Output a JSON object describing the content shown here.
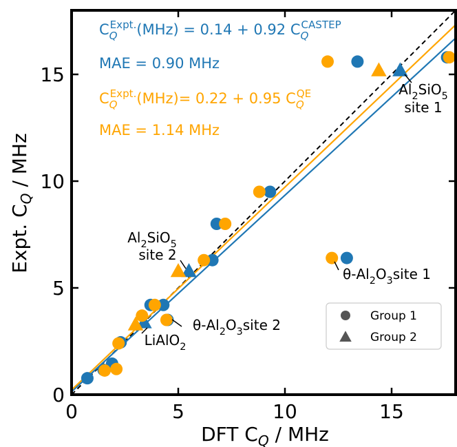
{
  "chart_data": {
    "type": "scatter",
    "x_label": [
      "DFT C",
      "Q",
      " / MHz"
    ],
    "y_label": [
      "Expt. C",
      "Q",
      " / MHz"
    ],
    "xlim": [
      0,
      18
    ],
    "ylim": [
      0,
      18
    ],
    "xticks": [
      0,
      5,
      10,
      15
    ],
    "yticks": [
      0,
      5,
      10,
      15
    ],
    "parity_line": true,
    "series": [
      {
        "color": "#1f77b4",
        "marker": "circle",
        "x": [
          0.74,
          1.5,
          1.9,
          2.3,
          3.7,
          4.3,
          4.5,
          6.6,
          6.8,
          9.3,
          12.9,
          13.4,
          17.6
        ],
        "y": [
          0.77,
          1.16,
          1.45,
          2.45,
          4.2,
          4.2,
          3.5,
          6.3,
          8.0,
          9.5,
          6.4,
          15.6,
          15.8
        ]
      },
      {
        "color": "#1f77b4",
        "marker": "triangle",
        "x": [
          3.4,
          5.5,
          15.4
        ],
        "y": [
          3.4,
          5.8,
          15.2
        ]
      },
      {
        "color": "#ffa500",
        "marker": "circle",
        "x": [
          1.55,
          2.1,
          2.2,
          3.3,
          3.9,
          4.45,
          6.2,
          7.2,
          8.8,
          12.2,
          12.0,
          17.7
        ],
        "y": [
          1.13,
          1.2,
          2.4,
          3.7,
          4.2,
          3.5,
          6.3,
          8.0,
          9.5,
          6.4,
          15.6,
          15.8
        ]
      },
      {
        "color": "#ffa500",
        "marker": "triangle",
        "x": [
          3.0,
          5.0,
          14.4
        ],
        "y": [
          3.3,
          5.8,
          15.2
        ]
      }
    ],
    "fits": [
      {
        "color": "#1f77b4",
        "prefix": "C",
        "sub": "Q",
        "sup": "Expt.",
        "mid": "(MHz) = ",
        "intercept": 0.14,
        "plus": " + ",
        "slope": 0.92,
        "var": " C",
        "var_sub": "Q",
        "var_sup": "CASTEP",
        "mae": "MAE = 0.90 MHz"
      },
      {
        "color": "#ffa500",
        "prefix": "C",
        "sub": "Q",
        "sup": "Expt.",
        "mid": "(MHz)= ",
        "intercept": 0.22,
        "plus": " + ",
        "slope": 0.95,
        "var": " C",
        "var_sub": "Q",
        "var_sup": "QE",
        "mae": "MAE = 1.14 MHz"
      }
    ],
    "annotations": [
      {
        "lines": [
          [
            "Al",
            "2",
            "SiO",
            "5"
          ],
          [
            "site 1"
          ]
        ]
      },
      {
        "lines": [
          [
            "Al",
            "2",
            "SiO",
            "5"
          ],
          [
            "site 2"
          ]
        ]
      },
      {
        "lines": [
          [
            "θ-Al",
            "2",
            "O",
            "3",
            "site 1"
          ]
        ]
      },
      {
        "lines": [
          [
            "θ-Al",
            "2",
            "O",
            "3",
            "site 2"
          ]
        ]
      },
      {
        "lines": [
          [
            "LiAlO",
            "2"
          ]
        ]
      }
    ],
    "legend": [
      {
        "name": "Group 1",
        "marker": "circle",
        "color": "#555555"
      },
      {
        "name": "Group 2",
        "marker": "triangle",
        "color": "#555555"
      }
    ]
  }
}
